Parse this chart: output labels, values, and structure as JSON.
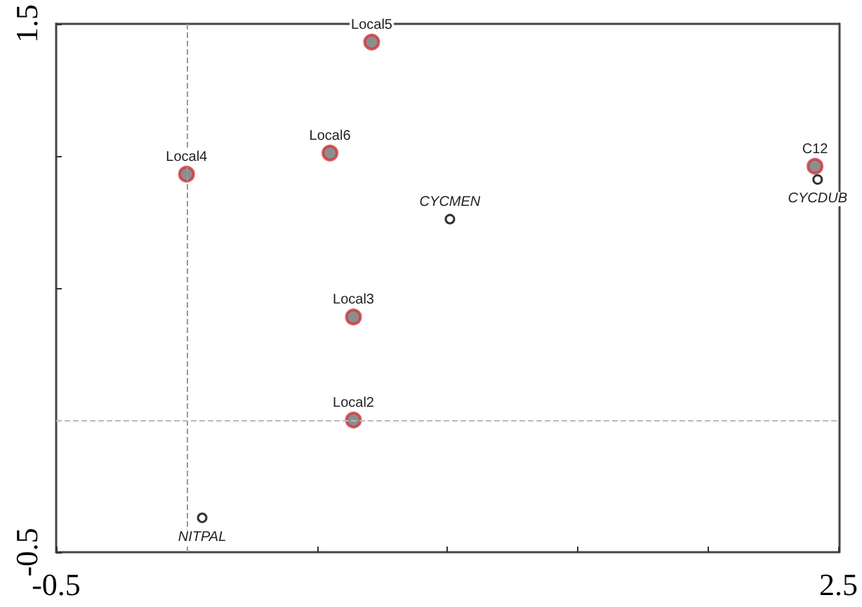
{
  "chart_data": {
    "type": "scatter",
    "xlim": [
      -0.5,
      2.5
    ],
    "ylim": [
      -0.5,
      1.5
    ],
    "xticks": [
      -0.5,
      {
        "value": 0,
        "label": null
      },
      {
        "value": 0.5,
        "label": null
      },
      {
        "value": 1,
        "label": null
      },
      {
        "value": 1.5,
        "label": null
      },
      {
        "value": 2,
        "label": null
      },
      2.5
    ],
    "yticks": [
      -0.5,
      {
        "value": 0,
        "label": null
      },
      {
        "value": 0.5,
        "label": null
      },
      {
        "value": 1,
        "label": null
      },
      1.5
    ],
    "grid": false,
    "marker": "circle",
    "series": [
      {
        "color": "#d0343a",
        "x": [
          0.71,
          0.55,
          0.0,
          0.64,
          0.64,
          2.41
        ],
        "values": [
          1.43,
          1.01,
          0.93,
          0.39,
          0.0,
          0.96
        ]
      },
      {
        "color": "#000000",
        "x": [
          1.01,
          2.42,
          0.06
        ],
        "values": [
          0.76,
          0.91,
          -0.37
        ]
      }
    ],
    "annotations": [
      {
        "text": "Local5",
        "x": 0.71,
        "y": 1.43
      },
      {
        "text": "Local6",
        "x": 0.55,
        "y": 1.01
      },
      {
        "text": "Local4",
        "x": 0.0,
        "y": 0.93
      },
      {
        "text": "Local3",
        "x": 0.64,
        "y": 0.39
      },
      {
        "text": "Local2",
        "x": 0.64,
        "y": 0.0
      },
      {
        "text": "C12",
        "x": 2.41,
        "y": 0.96
      },
      {
        "text": "CYCMEN",
        "x": 1.01,
        "y": 0.76
      },
      {
        "text": "CYCDUB",
        "x": 2.42,
        "y": 0.91
      },
      {
        "text": "NITPAL",
        "x": 0.06,
        "y": -0.37
      }
    ],
    "ref_lines": [
      {
        "axis": "x",
        "value": 0,
        "color": "#999999",
        "line_style": "dashed"
      },
      {
        "axis": "y",
        "value": 0,
        "color": "#bbbbbb",
        "line_style": "dashed"
      }
    ]
  }
}
